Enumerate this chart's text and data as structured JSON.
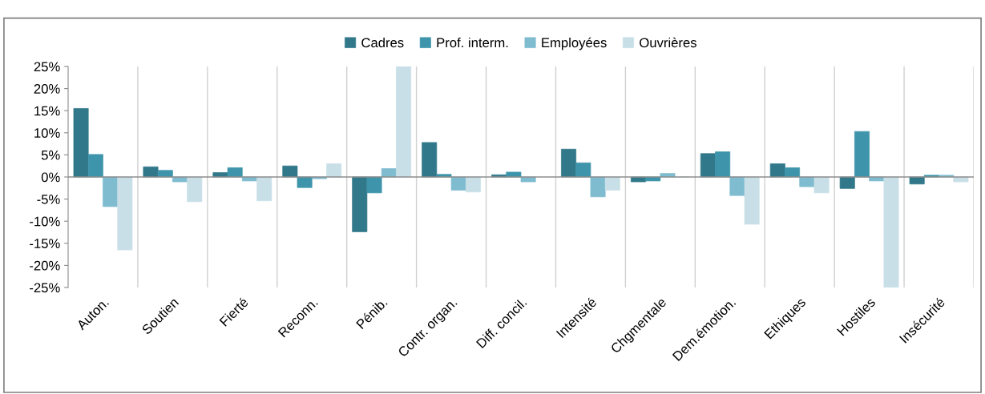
{
  "chart_data": {
    "type": "bar",
    "categories": [
      "Auton.",
      "Soutien",
      "Fierté",
      "Reconn.",
      "Pénib.",
      "Contr. organ.",
      "Diff. concil.",
      "Intensité",
      "Chgmentale",
      "Dem.émotion.",
      "Ethiques",
      "Hostiles",
      "Insécurité"
    ],
    "series": [
      {
        "name": "Cadres",
        "color": "#31788a",
        "values": [
          15.5,
          2.3,
          1.0,
          2.5,
          -12.4,
          7.8,
          0.5,
          6.3,
          -1.1,
          5.3,
          3.0,
          -2.6,
          -1.6
        ]
      },
      {
        "name": "Prof. interm.",
        "color": "#3e95ab",
        "values": [
          5.1,
          1.5,
          2.1,
          -2.4,
          -3.6,
          0.6,
          1.1,
          3.2,
          -0.9,
          5.7,
          2.1,
          10.3,
          0.4
        ]
      },
      {
        "name": "Employées",
        "color": "#7fbcd0",
        "values": [
          -6.7,
          -1.1,
          -0.9,
          -0.4,
          1.9,
          -3.0,
          -1.1,
          -4.5,
          0.8,
          -4.2,
          -2.2,
          -0.9,
          0.4
        ]
      },
      {
        "name": "Ouvrières",
        "color": "#c9dfe8",
        "values": [
          -16.5,
          -5.6,
          -5.4,
          3.0,
          25,
          -3.4,
          null,
          -3.0,
          0,
          -10.7,
          -3.6,
          -25,
          -1.1
        ]
      }
    ],
    "ylim": [
      -25,
      25
    ],
    "yticks": [
      {
        "value": -25,
        "label": "-25%"
      },
      {
        "value": -20,
        "label": "-20%"
      },
      {
        "value": -15,
        "label": "-15%"
      },
      {
        "value": -10,
        "label": "-10%"
      },
      {
        "value": -5,
        "label": "-5%"
      },
      {
        "value": 0,
        "label": "0%"
      },
      {
        "value": 5,
        "label": "5%"
      },
      {
        "value": 10,
        "label": "10%"
      },
      {
        "value": 15,
        "label": "15%"
      },
      {
        "value": 20,
        "label": "20%"
      },
      {
        "value": 25,
        "label": "25%"
      }
    ],
    "grid": "x",
    "legend": "top"
  }
}
